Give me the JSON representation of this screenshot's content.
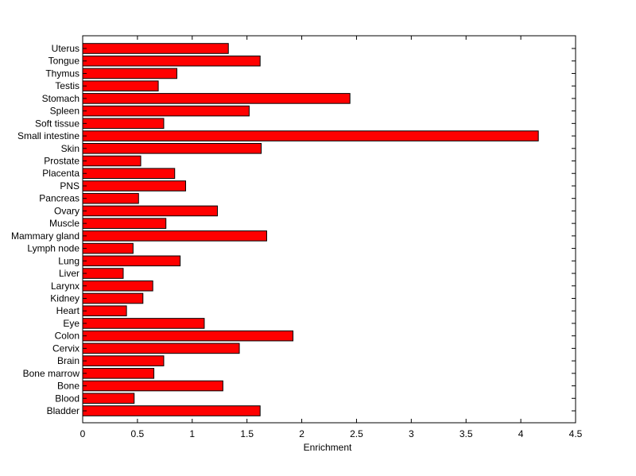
{
  "chart_data": {
    "type": "bar",
    "orientation": "horizontal",
    "title": "",
    "xlabel": "Enrichment",
    "ylabel": "",
    "xlim": [
      0,
      4.5
    ],
    "xticks": [
      0,
      0.5,
      1,
      1.5,
      2,
      2.5,
      3,
      3.5,
      4,
      4.5
    ],
    "xtick_labels": [
      "0",
      "0.5",
      "1",
      "1.5",
      "2",
      "2.5",
      "3",
      "3.5",
      "4",
      "4.5"
    ],
    "grid": false,
    "legend": "none",
    "bar_color": "#ff0000",
    "edge_color": "#000000",
    "categories": [
      "Uterus",
      "Tongue",
      "Thymus",
      "Testis",
      "Stomach",
      "Spleen",
      "Soft tissue",
      "Small intestine",
      "Skin",
      "Prostate",
      "Placenta",
      "PNS",
      "Pancreas",
      "Ovary",
      "Muscle",
      "Mammary gland",
      "Lymph node",
      "Lung",
      "Liver",
      "Larynx",
      "Kidney",
      "Heart",
      "Eye",
      "Colon",
      "Cervix",
      "Brain",
      "Bone marrow",
      "Bone",
      "Blood",
      "Bladder"
    ],
    "values": [
      1.33,
      1.62,
      0.86,
      0.69,
      2.44,
      1.52,
      0.74,
      4.16,
      1.63,
      0.53,
      0.84,
      0.94,
      0.51,
      1.23,
      0.76,
      1.68,
      0.46,
      0.89,
      0.37,
      0.64,
      0.55,
      0.4,
      1.11,
      1.92,
      1.43,
      0.74,
      0.65,
      1.28,
      0.47,
      1.62
    ]
  }
}
